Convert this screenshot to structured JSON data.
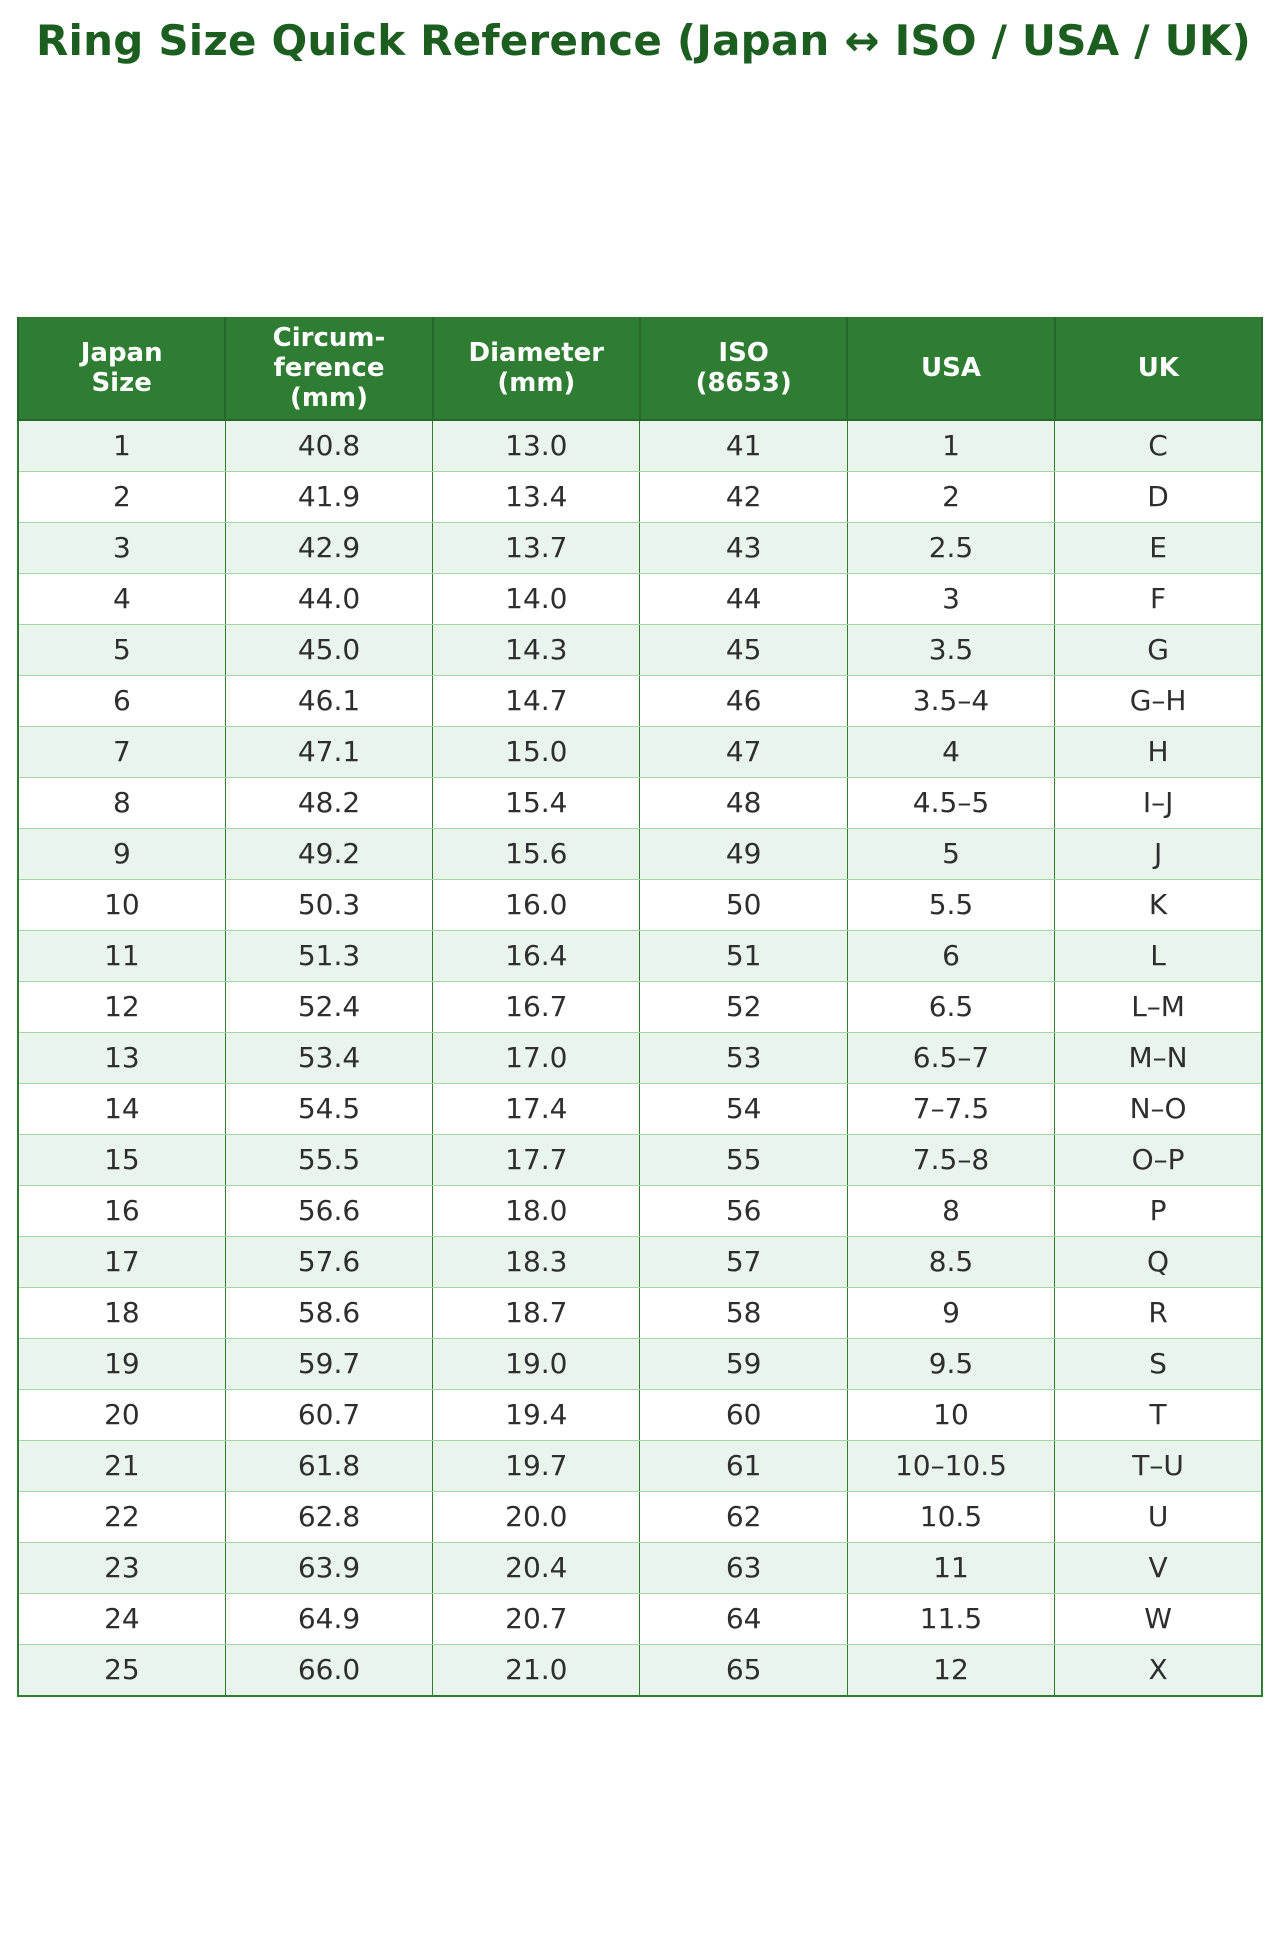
{
  "page": {
    "title": "Ring Size Quick Reference (Japan ↔ ISO / USA / UK)"
  },
  "chart_data": {
    "type": "table",
    "title": "Ring Size Quick Reference (Japan ↔ ISO / USA / UK)",
    "columns": [
      "Japan\nSize",
      "Circum-\nference\n(mm)",
      "Diameter\n(mm)",
      "ISO\n(8653)",
      "USA",
      "UK"
    ],
    "rows": [
      [
        "1",
        "40.8",
        "13.0",
        "41",
        "1",
        "C"
      ],
      [
        "2",
        "41.9",
        "13.4",
        "42",
        "2",
        "D"
      ],
      [
        "3",
        "42.9",
        "13.7",
        "43",
        "2.5",
        "E"
      ],
      [
        "4",
        "44.0",
        "14.0",
        "44",
        "3",
        "F"
      ],
      [
        "5",
        "45.0",
        "14.3",
        "45",
        "3.5",
        "G"
      ],
      [
        "6",
        "46.1",
        "14.7",
        "46",
        "3.5–4",
        "G–H"
      ],
      [
        "7",
        "47.1",
        "15.0",
        "47",
        "4",
        "H"
      ],
      [
        "8",
        "48.2",
        "15.4",
        "48",
        "4.5–5",
        "I–J"
      ],
      [
        "9",
        "49.2",
        "15.6",
        "49",
        "5",
        "J"
      ],
      [
        "10",
        "50.3",
        "16.0",
        "50",
        "5.5",
        "K"
      ],
      [
        "11",
        "51.3",
        "16.4",
        "51",
        "6",
        "L"
      ],
      [
        "12",
        "52.4",
        "16.7",
        "52",
        "6.5",
        "L–M"
      ],
      [
        "13",
        "53.4",
        "17.0",
        "53",
        "6.5–7",
        "M–N"
      ],
      [
        "14",
        "54.5",
        "17.4",
        "54",
        "7–7.5",
        "N–O"
      ],
      [
        "15",
        "55.5",
        "17.7",
        "55",
        "7.5–8",
        "O–P"
      ],
      [
        "16",
        "56.6",
        "18.0",
        "56",
        "8",
        "P"
      ],
      [
        "17",
        "57.6",
        "18.3",
        "57",
        "8.5",
        "Q"
      ],
      [
        "18",
        "58.6",
        "18.7",
        "58",
        "9",
        "R"
      ],
      [
        "19",
        "59.7",
        "19.0",
        "59",
        "9.5",
        "S"
      ],
      [
        "20",
        "60.7",
        "19.4",
        "60",
        "10",
        "T"
      ],
      [
        "21",
        "61.8",
        "19.7",
        "61",
        "10–10.5",
        "T–U"
      ],
      [
        "22",
        "62.8",
        "20.0",
        "62",
        "10.5",
        "U"
      ],
      [
        "23",
        "63.9",
        "20.4",
        "63",
        "11",
        "V"
      ],
      [
        "24",
        "64.9",
        "20.7",
        "64",
        "11.5",
        "W"
      ],
      [
        "25",
        "66.0",
        "21.0",
        "65",
        "12",
        "X"
      ]
    ],
    "layout": {
      "legend": "none",
      "grid": "table-borders",
      "striped_rows": true
    },
    "colors": {
      "title_text": "#1b5e20",
      "header_bg": "#2e7d32",
      "header_text": "#ffffff",
      "stripe_row_bg": "#e9f5ec",
      "plain_row_bg": "#ffffff",
      "border": "#2e7d32",
      "row_divider": "#a5d6a7",
      "cell_text": "#2e2e2e"
    }
  }
}
